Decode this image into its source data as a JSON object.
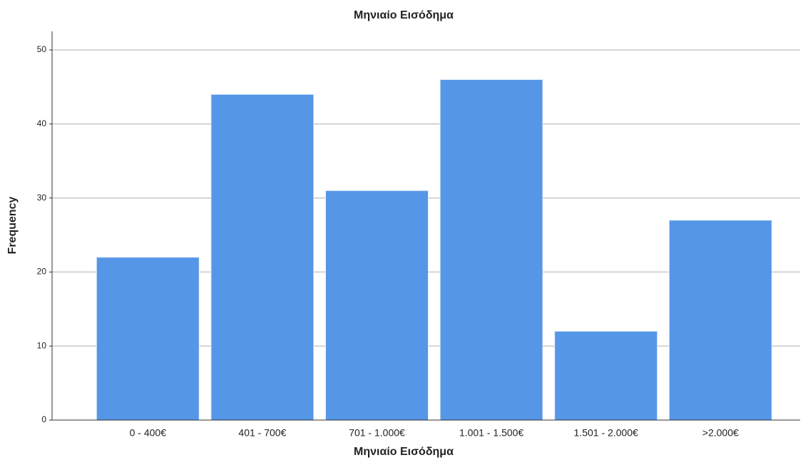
{
  "chart_data": {
    "type": "bar",
    "title": "Μηνιαίο Εισόδημα",
    "x_label": "Μηνιαίο Εισόδημα",
    "y_label": "Frequency",
    "categories": [
      "0 - 400€",
      "401 - 700€",
      "701 - 1.000€",
      "1.001 - 1.500€",
      "1.501 - 2.000€",
      ">2.000€"
    ],
    "values": [
      22,
      44,
      31,
      46,
      12,
      27
    ],
    "color": "#5596e6",
    "ylim": [
      0,
      50
    ],
    "yticks": [
      0,
      10,
      20,
      30,
      40,
      50
    ],
    "grid": true
  }
}
